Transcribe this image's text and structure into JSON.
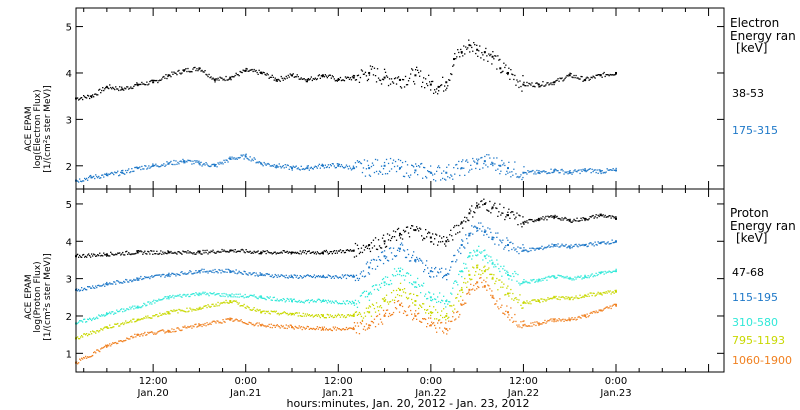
{
  "figure": {
    "xlabel": "hours:minutes, Jan. 20, 2012 - Jan. 23, 2012",
    "x_ticks": [
      {
        "time": "Jan. 20, 12:00",
        "hour": 12,
        "line1": "12:00",
        "line2": "Jan.20"
      },
      {
        "time": "Jan. 21, 0:00",
        "hour": 24,
        "line1": "0:00",
        "line2": "Jan.21"
      },
      {
        "time": "Jan. 21, 12:00",
        "hour": 36,
        "line1": "12:00",
        "line2": "Jan.21"
      },
      {
        "time": "Jan. 22, 0:00",
        "hour": 48,
        "line1": "0:00",
        "line2": "Jan.22"
      },
      {
        "time": "Jan. 22, 12:00",
        "hour": 60,
        "line1": "12:00",
        "line2": "Jan.22"
      },
      {
        "time": "Jan. 23, 0:00",
        "hour": 72,
        "line1": "0:00",
        "line2": "Jan.23"
      }
    ]
  },
  "chart_data": [
    {
      "type": "scatter",
      "panel": "electron",
      "ylabel": [
        "ACE EPAM",
        "log(Electron Flux)",
        "[1/(cm²s ster MeV)]"
      ],
      "ylim": [
        1.5,
        5.4
      ],
      "yticks": [
        2,
        3,
        4,
        5
      ],
      "legend_title": [
        "Electron",
        "Energy ran",
        "[keV]"
      ],
      "x_unit": "hours from Jan. 20, 2012 0:00",
      "xlim": [
        2,
        86
      ],
      "series": [
        {
          "name": "38-53",
          "color": "#000000",
          "x": [
            2,
            4,
            6,
            8,
            10,
            12,
            14,
            16,
            18,
            20,
            22,
            24,
            26,
            28,
            30,
            32,
            34,
            36,
            38,
            40,
            42,
            44,
            46,
            48,
            49,
            50,
            51,
            52,
            53,
            54,
            55,
            56,
            57,
            58,
            60,
            62,
            64,
            66,
            68,
            70,
            72
          ],
          "y": [
            3.45,
            3.5,
            3.7,
            3.65,
            3.75,
            3.8,
            3.95,
            4.05,
            4.1,
            3.85,
            3.9,
            4.05,
            4.0,
            3.85,
            3.95,
            3.85,
            3.95,
            3.85,
            3.9,
            4.0,
            3.9,
            3.85,
            3.95,
            3.75,
            3.7,
            3.8,
            4.3,
            4.45,
            4.6,
            4.5,
            4.45,
            4.35,
            4.1,
            4.0,
            3.75,
            3.75,
            3.8,
            3.95,
            3.85,
            3.95,
            4.0
          ]
        },
        {
          "name": "175-315",
          "color": "#1e78c8",
          "x": [
            2,
            4,
            6,
            8,
            10,
            12,
            14,
            16,
            18,
            20,
            22,
            24,
            26,
            28,
            30,
            32,
            34,
            36,
            38,
            40,
            42,
            44,
            46,
            48,
            50,
            52,
            54,
            55,
            56,
            57,
            58,
            60,
            62,
            64,
            66,
            68,
            70,
            72
          ],
          "y": [
            1.68,
            1.75,
            1.8,
            1.85,
            1.95,
            2.0,
            2.05,
            2.1,
            2.05,
            2.0,
            2.15,
            2.2,
            2.05,
            2.0,
            1.95,
            1.95,
            2.0,
            2.0,
            1.95,
            1.95,
            2.0,
            1.95,
            1.9,
            1.85,
            1.85,
            1.95,
            2.05,
            2.1,
            2.05,
            2.0,
            1.95,
            1.85,
            1.85,
            1.9,
            1.85,
            1.9,
            1.88,
            1.9
          ]
        }
      ]
    },
    {
      "type": "scatter",
      "panel": "proton",
      "ylabel": [
        "ACE EPAM",
        "log(Proton Flux)",
        "[1/(cm²s ster MeV)]"
      ],
      "ylim": [
        0.5,
        5.4
      ],
      "yticks": [
        1,
        2,
        3,
        4,
        5
      ],
      "legend_title": [
        "Proton",
        "Energy ran",
        "[keV]"
      ],
      "x_unit": "hours from Jan. 20, 2012 0:00",
      "xlim": [
        2,
        86
      ],
      "series": [
        {
          "name": "47-68",
          "color": "#000000",
          "x": [
            2,
            6,
            10,
            14,
            18,
            22,
            26,
            30,
            34,
            38,
            40,
            42,
            44,
            46,
            48,
            50,
            52,
            53,
            54,
            55,
            56,
            58,
            60,
            62,
            64,
            66,
            68,
            70,
            72
          ],
          "y": [
            3.6,
            3.65,
            3.7,
            3.7,
            3.7,
            3.75,
            3.7,
            3.7,
            3.7,
            3.75,
            3.9,
            4.0,
            4.2,
            4.3,
            4.1,
            4.0,
            4.5,
            4.75,
            4.95,
            5.0,
            4.9,
            4.7,
            4.5,
            4.6,
            4.65,
            4.55,
            4.6,
            4.7,
            4.6
          ]
        },
        {
          "name": "115-195",
          "color": "#1e78c8",
          "x": [
            2,
            6,
            10,
            14,
            18,
            22,
            26,
            30,
            34,
            38,
            40,
            42,
            44,
            46,
            48,
            50,
            52,
            53,
            54,
            55,
            56,
            58,
            60,
            62,
            64,
            66,
            68,
            70,
            72
          ],
          "y": [
            2.7,
            2.85,
            3.0,
            3.1,
            3.2,
            3.2,
            3.1,
            3.05,
            3.05,
            3.05,
            3.3,
            3.6,
            3.8,
            3.5,
            3.2,
            3.1,
            3.9,
            4.2,
            4.35,
            4.25,
            4.1,
            3.9,
            3.75,
            3.8,
            3.9,
            3.85,
            3.9,
            3.95,
            4.0
          ]
        },
        {
          "name": "310-580",
          "color": "#30e8d8",
          "x": [
            2,
            6,
            10,
            14,
            18,
            22,
            26,
            30,
            34,
            38,
            40,
            42,
            44,
            46,
            48,
            50,
            52,
            53,
            54,
            55,
            56,
            58,
            60,
            62,
            64,
            66,
            68,
            70,
            72
          ],
          "y": [
            1.8,
            2.05,
            2.25,
            2.5,
            2.6,
            2.55,
            2.5,
            2.4,
            2.4,
            2.35,
            2.6,
            2.9,
            3.2,
            2.9,
            2.5,
            2.4,
            3.2,
            3.6,
            3.75,
            3.6,
            3.4,
            3.1,
            2.9,
            2.95,
            3.05,
            3.0,
            3.05,
            3.15,
            3.2
          ]
        },
        {
          "name": "795-1193",
          "color": "#c8d800",
          "x": [
            2,
            6,
            10,
            14,
            18,
            22,
            26,
            30,
            34,
            38,
            40,
            42,
            44,
            46,
            48,
            50,
            52,
            53,
            54,
            55,
            56,
            58,
            60,
            62,
            64,
            66,
            68,
            70,
            72
          ],
          "y": [
            1.4,
            1.7,
            1.9,
            2.1,
            2.2,
            2.4,
            2.1,
            2.05,
            2.0,
            2.0,
            2.1,
            2.4,
            2.7,
            2.4,
            2.1,
            2.0,
            2.7,
            3.1,
            3.3,
            3.2,
            3.0,
            2.6,
            2.35,
            2.4,
            2.5,
            2.45,
            2.55,
            2.6,
            2.65
          ]
        },
        {
          "name": "1060-1900",
          "color": "#f08020",
          "x": [
            2,
            6,
            10,
            14,
            18,
            22,
            26,
            30,
            34,
            38,
            40,
            42,
            44,
            46,
            48,
            50,
            52,
            53,
            54,
            55,
            56,
            58,
            60,
            62,
            64,
            66,
            68,
            70,
            72
          ],
          "y": [
            0.75,
            1.2,
            1.5,
            1.6,
            1.75,
            1.9,
            1.75,
            1.7,
            1.65,
            1.65,
            1.75,
            2.0,
            2.3,
            2.0,
            1.75,
            1.65,
            2.3,
            2.7,
            2.9,
            2.8,
            2.5,
            2.1,
            1.75,
            1.8,
            1.9,
            1.9,
            2.0,
            2.15,
            2.3
          ]
        }
      ]
    }
  ]
}
